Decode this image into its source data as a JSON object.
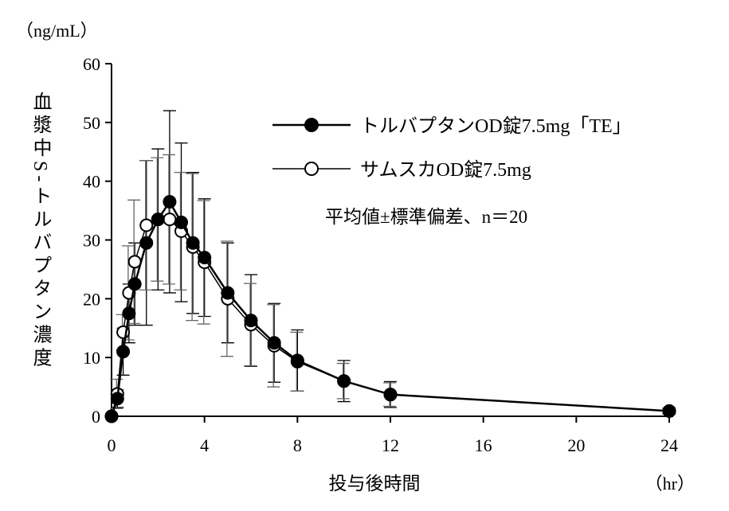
{
  "chart_data": {
    "type": "line",
    "title": "",
    "ylabel": "血漿中S-トルバプタン濃度",
    "yunit": "（ng/mL）",
    "xlabel": "投与後時間",
    "xunit": "（hr）",
    "xlim": [
      0,
      24
    ],
    "ylim": [
      0,
      60
    ],
    "xticks": [
      0,
      4,
      8,
      12,
      16,
      20,
      24
    ],
    "yticks": [
      0,
      10,
      20,
      30,
      40,
      50,
      60
    ],
    "annotation": "平均値±標準偏差、n＝20",
    "legend_position": "top-right",
    "x": [
      0,
      0.25,
      0.5,
      0.75,
      1,
      1.5,
      2,
      2.5,
      3,
      3.5,
      4,
      5,
      6,
      7,
      8,
      10,
      12,
      24
    ],
    "series": [
      {
        "name": "トルバプタンOD錠7.5mg「TE」",
        "marker": "filled",
        "values": [
          0,
          3,
          11,
          17.5,
          22.5,
          29.5,
          33.5,
          36.5,
          33,
          29.5,
          27,
          21,
          16.3,
          12.5,
          9.5,
          6,
          3.7,
          0.9
        ],
        "sd": [
          0,
          1.5,
          4,
          5,
          7,
          14,
          12,
          15.5,
          13.5,
          12,
          10,
          8.5,
          7.8,
          6.7,
          5.2,
          3.5,
          2.2,
          0.5
        ]
      },
      {
        "name": "サムスカOD錠7.5mg",
        "marker": "open",
        "values": [
          0,
          3.8,
          14.3,
          21,
          26.3,
          32.5,
          33.5,
          33.5,
          31.5,
          28.8,
          26.2,
          20,
          15.6,
          12,
          9.3,
          6,
          3.7,
          0.9
        ],
        "sd": [
          0,
          2.5,
          3,
          8,
          10.5,
          11,
          10.5,
          11,
          10,
          12.5,
          10.5,
          9.8,
          7,
          7,
          5,
          3,
          2,
          0.5
        ]
      }
    ]
  }
}
